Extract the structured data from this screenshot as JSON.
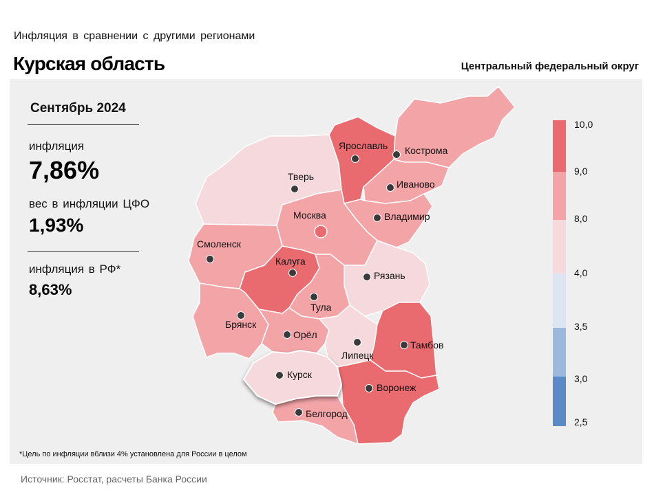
{
  "header": {
    "supertitle": "Инфляция в сравнении с другими регионами",
    "title": "Курская область",
    "district": "Центральный федеральный округ"
  },
  "stats": {
    "period": "Сентябрь 2024",
    "inflation_label": "инфляция",
    "inflation_value": "7,86%",
    "weight_label": "вес в инфляции ЦФО",
    "weight_value": "1,93%",
    "russia_label": "инфляция в РФ*",
    "russia_value": "8,63%"
  },
  "map": {
    "selected_region": "Курск",
    "regions": [
      {
        "name": "Тверь",
        "bin": "4.0–8.0",
        "color": "#f6d9dc"
      },
      {
        "name": "Ярославль",
        "bin": "9.0–10.0",
        "color": "#ea6b6f"
      },
      {
        "name": "Кострома",
        "bin": "8.0–9.0",
        "color": "#f2a4a7"
      },
      {
        "name": "Иваново",
        "bin": "8.0–9.0",
        "color": "#f2a4a7"
      },
      {
        "name": "Владимир",
        "bin": "8.0–9.0",
        "color": "#f2a4a7"
      },
      {
        "name": "Москва",
        "bin": "8.0–9.0",
        "color": "#f2a4a7"
      },
      {
        "name": "Смоленск",
        "bin": "8.0–9.0",
        "color": "#f2a4a7"
      },
      {
        "name": "Калуга",
        "bin": "9.0–10.0",
        "color": "#ea6b6f"
      },
      {
        "name": "Рязань",
        "bin": "4.0–8.0",
        "color": "#f6d9dc"
      },
      {
        "name": "Тула",
        "bin": "8.0–9.0",
        "color": "#f2a4a7"
      },
      {
        "name": "Брянск",
        "bin": "8.0–9.0",
        "color": "#f2a4a7"
      },
      {
        "name": "Орёл",
        "bin": "8.0–9.0",
        "color": "#f2a4a7"
      },
      {
        "name": "Липецк",
        "bin": "4.0–8.0",
        "color": "#f6d9dc"
      },
      {
        "name": "Тамбов",
        "bin": "9.0–10.0",
        "color": "#ea6b6f"
      },
      {
        "name": "Курск",
        "bin": "4.0–8.0",
        "color": "#f6d9dc"
      },
      {
        "name": "Воронеж",
        "bin": "9.0–10.0",
        "color": "#ea6b6f"
      },
      {
        "name": "Белгород",
        "bin": "8.0–9.0",
        "color": "#f2a4a7"
      }
    ]
  },
  "legend": {
    "tick_labels": [
      "10,0",
      "9,0",
      "8,0",
      "4,0",
      "3,5",
      "3,0",
      "2,5"
    ],
    "bins": [
      {
        "from": "9,0",
        "to": "10,0",
        "color": "#ea6b6f"
      },
      {
        "from": "8,0",
        "to": "9,0",
        "color": "#f2a4a7"
      },
      {
        "from": "4,0",
        "to": "8,0",
        "color": "#f6d9dc"
      },
      {
        "from": "3,5",
        "to": "4,0",
        "color": "#dce6f3"
      },
      {
        "from": "3,0",
        "to": "3,5",
        "color": "#9cb8dc"
      },
      {
        "from": "2,5",
        "to": "3,0",
        "color": "#5b8ac6"
      }
    ]
  },
  "footnote": "*Цель по инфляции вблизи 4% установлена для России в целом",
  "source": "Источник: Росстат, расчеты Банка России"
}
